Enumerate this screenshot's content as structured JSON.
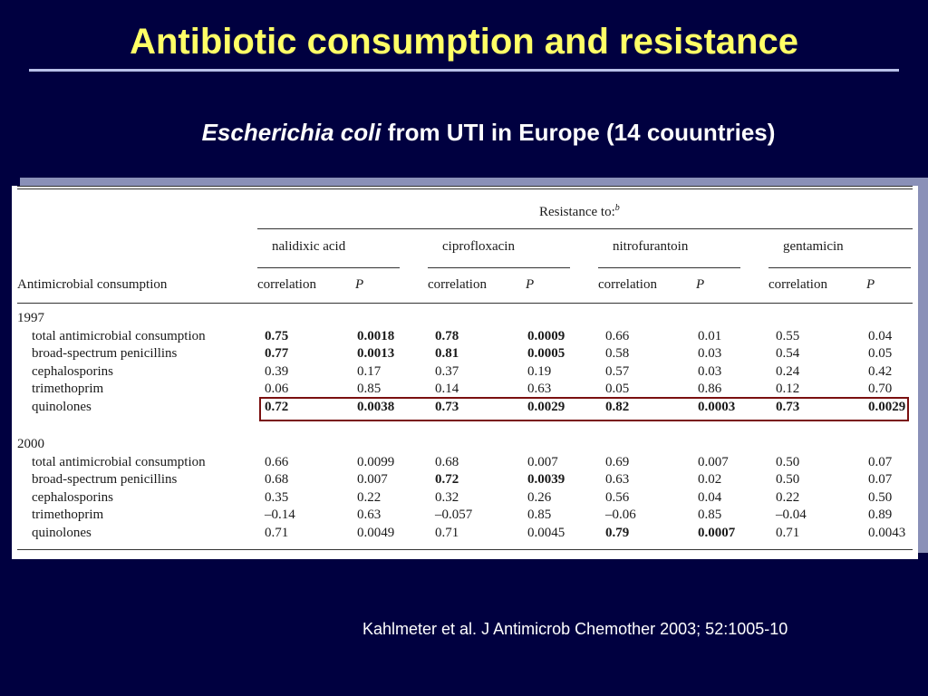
{
  "slide": {
    "title": "Antibiotic consumption and resistance",
    "subtitle_italic": "Escherichia coli",
    "subtitle_rest": " from UTI in Europe (14 couuntries)",
    "citation": "Kahlmeter et al. J Antimicrob Chemother 2003; 52:1005-10"
  },
  "table": {
    "resistance_header": "Resistance to:",
    "resistance_sup": "b",
    "row_header": "Antimicrobial consumption",
    "drugs": [
      "nalidixic acid",
      "ciprofloxacin",
      "nitrofurantoin",
      "gentamicin"
    ],
    "col_correlation": "correlation",
    "col_p": "P",
    "years": [
      {
        "year": "1997",
        "rows": [
          {
            "label": "total antimicrobial consumption",
            "values": [
              "0.75",
              "0.0018",
              "0.78",
              "0.0009",
              "0.66",
              "0.01",
              "0.55",
              "0.04"
            ],
            "bold": [
              true,
              true,
              true,
              true,
              false,
              false,
              false,
              false
            ]
          },
          {
            "label": "broad-spectrum penicillins",
            "values": [
              "0.77",
              "0.0013",
              "0.81",
              "0.0005",
              "0.58",
              "0.03",
              "0.54",
              "0.05"
            ],
            "bold": [
              true,
              true,
              true,
              true,
              false,
              false,
              false,
              false
            ]
          },
          {
            "label": "cephalosporins",
            "values": [
              "0.39",
              "0.17",
              "0.37",
              "0.19",
              "0.57",
              "0.03",
              "0.24",
              "0.42"
            ],
            "bold": [
              false,
              false,
              false,
              false,
              false,
              false,
              false,
              false
            ]
          },
          {
            "label": "trimethoprim",
            "values": [
              "0.06",
              "0.85",
              "0.14",
              "0.63",
              "0.05",
              "0.86",
              "0.12",
              "0.70"
            ],
            "bold": [
              false,
              false,
              false,
              false,
              false,
              false,
              false,
              false
            ]
          },
          {
            "label": "quinolones",
            "values": [
              "0.72",
              "0.0038",
              "0.73",
              "0.0029",
              "0.82",
              "0.0003",
              "0.73",
              "0.0029"
            ],
            "bold": [
              true,
              true,
              true,
              true,
              true,
              true,
              true,
              true
            ]
          }
        ]
      },
      {
        "year": "2000",
        "rows": [
          {
            "label": "total antimicrobial consumption",
            "values": [
              "0.66",
              "0.0099",
              "0.68",
              "0.007",
              "0.69",
              "0.007",
              "0.50",
              "0.07"
            ],
            "bold": [
              false,
              false,
              false,
              false,
              false,
              false,
              false,
              false
            ]
          },
          {
            "label": "broad-spectrum penicillins",
            "values": [
              "0.68",
              "0.007",
              "0.72",
              "0.0039",
              "0.63",
              "0.02",
              "0.50",
              "0.07"
            ],
            "bold": [
              false,
              false,
              true,
              true,
              false,
              false,
              false,
              false
            ]
          },
          {
            "label": "cephalosporins",
            "values": [
              "0.35",
              "0.22",
              "0.32",
              "0.26",
              "0.56",
              "0.04",
              "0.22",
              "0.50"
            ],
            "bold": [
              false,
              false,
              false,
              false,
              false,
              false,
              false,
              false
            ]
          },
          {
            "label": "trimethoprim",
            "values": [
              "–0.14",
              "0.63",
              "–0.057",
              "0.85",
              "–0.06",
              "0.85",
              "–0.04",
              "0.89"
            ],
            "bold": [
              false,
              false,
              false,
              false,
              false,
              false,
              false,
              false
            ]
          },
          {
            "label": "quinolones",
            "values": [
              "0.71",
              "0.0049",
              "0.71",
              "0.0045",
              "0.79",
              "0.0007",
              "0.71",
              "0.0043"
            ],
            "bold": [
              false,
              false,
              false,
              false,
              true,
              true,
              false,
              false
            ]
          }
        ]
      }
    ]
  }
}
